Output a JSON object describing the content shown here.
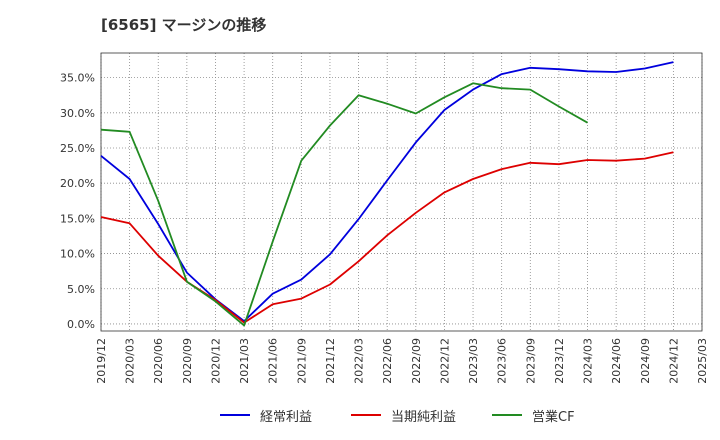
{
  "chart_data": {
    "type": "line",
    "title": "[6565]  マージンの推移",
    "xlabel": "",
    "ylabel": "",
    "ylim": [
      -0.01,
      0.385
    ],
    "yticks": [
      0.0,
      0.05,
      0.1,
      0.15,
      0.2,
      0.25,
      0.3,
      0.35
    ],
    "ytick_labels": [
      "0.0%",
      "5.0%",
      "10.0%",
      "15.0%",
      "20.0%",
      "25.0%",
      "30.0%",
      "35.0%"
    ],
    "x": [
      "2019/12",
      "2020/03",
      "2020/06",
      "2020/09",
      "2020/12",
      "2021/03",
      "2021/06",
      "2021/09",
      "2021/12",
      "2022/03",
      "2022/06",
      "2022/09",
      "2022/12",
      "2023/03",
      "2023/06",
      "2023/09",
      "2023/12",
      "2024/03",
      "2024/06",
      "2024/09",
      "2024/12",
      "2025/03"
    ],
    "grid": true,
    "legend_position": "bottom",
    "series": [
      {
        "name": "経常利益",
        "color": "#0000dd",
        "values": [
          0.239,
          0.206,
          0.142,
          0.073,
          0.035,
          0.004,
          0.043,
          0.063,
          0.099,
          0.149,
          0.204,
          0.258,
          0.304,
          0.333,
          0.355,
          0.364,
          0.362,
          0.359,
          0.358,
          0.363,
          0.372,
          null
        ]
      },
      {
        "name": "当期純利益",
        "color": "#dd0000",
        "values": [
          0.152,
          0.143,
          0.097,
          0.06,
          0.034,
          0.002,
          0.028,
          0.036,
          0.056,
          0.089,
          0.126,
          0.158,
          0.187,
          0.206,
          0.22,
          0.229,
          0.227,
          0.233,
          0.232,
          0.235,
          0.244,
          null
        ]
      },
      {
        "name": "営業CF",
        "color": "#228b22",
        "values": [
          0.276,
          0.273,
          0.175,
          0.06,
          0.032,
          -0.002,
          0.117,
          0.232,
          0.282,
          0.325,
          0.313,
          0.299,
          0.322,
          0.342,
          0.335,
          0.333,
          0.309,
          0.286,
          null,
          null,
          null,
          null
        ]
      }
    ]
  }
}
